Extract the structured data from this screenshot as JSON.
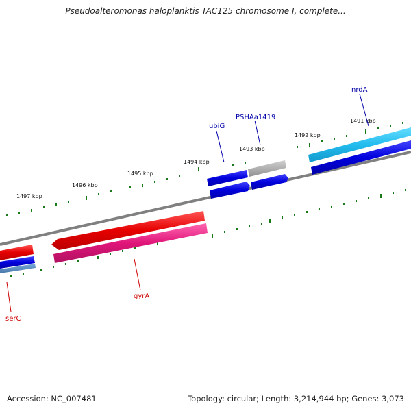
{
  "title": "Pseudoalteromonas haloplanktis TAC125 chromosome I, complete...",
  "footer": {
    "accession": "Accession: NC_007481",
    "topology": "Topology: circular; Length: 3,214,944 bp; Genes: 3,073"
  },
  "scale_ticks": [
    "1491 kbp",
    "1492 kbp",
    "1493 kbp",
    "1494 kbp",
    "1495 kbp",
    "1496 kbp",
    "1497 kbp"
  ],
  "gene_labels": {
    "nrdA": "nrdA",
    "PSHAa1419": "PSHAa1419",
    "ubiG": "ubiG",
    "gyrA": "gyrA",
    "serC": "serC"
  },
  "colors": {
    "backbone": "#808080",
    "tick": "#1a7a1a",
    "forward_label": "#0000aa",
    "reverse_label": "#cc0000",
    "red_gene": "#e60000",
    "pink_gene": "#e0157a",
    "blue_gene": "#0000dd",
    "cyan_gene": "#22bbee",
    "gray_gene": "#b0b0b0"
  }
}
